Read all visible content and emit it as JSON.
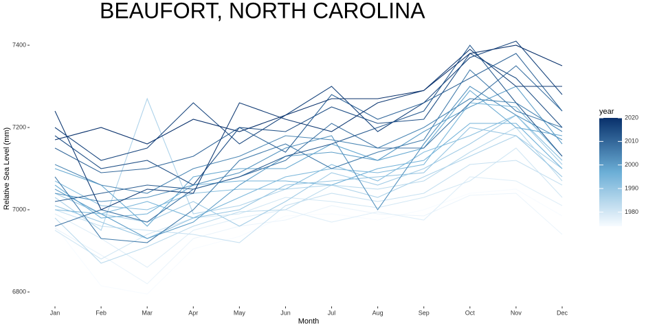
{
  "chart_data": {
    "type": "line",
    "title": "BEAUFORT, NORTH CAROLINA",
    "x_label": "Month",
    "y_label": "Relative Sea Level (mm)",
    "categories": [
      "Jan",
      "Feb",
      "Mar",
      "Apr",
      "May",
      "Jun",
      "Jul",
      "Aug",
      "Sep",
      "Oct",
      "Nov",
      "Dec"
    ],
    "ylim": [
      6780,
      7420
    ],
    "yticks": [
      6800,
      7000,
      7200,
      7400
    ],
    "colorbar": {
      "title": "year",
      "lim": [
        1974,
        2020
      ],
      "ticks": [
        1980,
        1990,
        2000,
        2010,
        2020
      ],
      "colors": [
        "#f7fbff",
        "#6baed6",
        "#08306b"
      ]
    },
    "series": [
      {
        "year": 1974,
        "values": [
          6960,
          6815,
          6795,
          6905,
          6935,
          6985,
          6990,
          6975,
          7000,
          7040,
          7050,
          6985
        ]
      },
      {
        "year": 1976,
        "values": [
          6955,
          6890,
          6820,
          6930,
          6960,
          6975,
          7010,
          6990,
          6985,
          7035,
          7040,
          6940
        ]
      },
      {
        "year": 1978,
        "values": [
          6990,
          6930,
          6860,
          6950,
          6980,
          7000,
          6970,
          6995,
          6975,
          7080,
          7070,
          7010
        ]
      },
      {
        "year": 1980,
        "values": [
          6950,
          6880,
          6940,
          6980,
          6990,
          7030,
          7020,
          7005,
          7030,
          7070,
          7150,
          7030
        ]
      },
      {
        "year": 1982,
        "values": [
          7000,
          6960,
          6950,
          6940,
          6920,
          7010,
          7040,
          7020,
          7040,
          7110,
          7120,
          7060
        ]
      },
      {
        "year": 1984,
        "values": [
          6980,
          6870,
          6910,
          6960,
          6995,
          7000,
          7060,
          7050,
          7070,
          7140,
          7200,
          7070
        ]
      },
      {
        "year": 1986,
        "values": [
          7030,
          6950,
          7270,
          6990,
          7010,
          7050,
          7060,
          7030,
          7080,
          7130,
          7180,
          7100
        ]
      },
      {
        "year": 1988,
        "values": [
          7040,
          6990,
          6970,
          7020,
          6960,
          7020,
          7090,
          7060,
          7100,
          7160,
          7230,
          7110
        ]
      },
      {
        "year": 1990,
        "values": [
          7010,
          6970,
          6930,
          6980,
          7000,
          7060,
          7070,
          7080,
          7090,
          7200,
          7180,
          7080
        ]
      },
      {
        "year": 1992,
        "values": [
          7070,
          7010,
          7000,
          7040,
          7050,
          7050,
          7110,
          7070,
          7140,
          7180,
          7230,
          7120
        ]
      },
      {
        "year": 1994,
        "values": [
          7000,
          6990,
          7020,
          6980,
          7030,
          7080,
          7100,
          7090,
          7110,
          7260,
          7250,
          7130
        ]
      },
      {
        "year": 1996,
        "values": [
          7060,
          6980,
          6990,
          7060,
          7070,
          7070,
          7060,
          7100,
          7120,
          7210,
          7210,
          7100
        ]
      },
      {
        "year": 1998,
        "values": [
          7100,
          7060,
          6960,
          7080,
          7100,
          7100,
          7160,
          7120,
          7150,
          7290,
          7200,
          7180
        ]
      },
      {
        "year": 2000,
        "values": [
          7050,
          6990,
          6930,
          6970,
          7060,
          7130,
          7140,
          7120,
          7190,
          7250,
          7300,
          7160
        ]
      },
      {
        "year": 2002,
        "values": [
          7040,
          7020,
          7030,
          7060,
          7090,
          7150,
          7180,
          7000,
          7160,
          7300,
          7230,
          7170
        ]
      },
      {
        "year": 2004,
        "values": [
          7110,
          7060,
          7040,
          7100,
          7130,
          7180,
          7170,
          7150,
          7200,
          7270,
          7260,
          7190
        ]
      },
      {
        "year": 2006,
        "values": [
          7080,
          6930,
          6920,
          7000,
          7120,
          7160,
          7100,
          7140,
          7170,
          7340,
          7240,
          7200
        ]
      },
      {
        "year": 2008,
        "values": [
          6960,
          7000,
          6970,
          7050,
          7080,
          7120,
          7210,
          7150,
          7150,
          7260,
          7350,
          7240
        ]
      },
      {
        "year": 2010,
        "values": [
          7150,
          7090,
          7100,
          7130,
          7200,
          7140,
          7280,
          7220,
          7260,
          7320,
          7380,
          7240
        ]
      },
      {
        "year": 2012,
        "values": [
          7020,
          7040,
          7060,
          7050,
          7080,
          7130,
          7160,
          7200,
          7240,
          7400,
          7260,
          7130
        ]
      },
      {
        "year": 2014,
        "values": [
          7180,
          7100,
          7120,
          7060,
          7200,
          7190,
          7250,
          7210,
          7220,
          7380,
          7320,
          7200
        ]
      },
      {
        "year": 2016,
        "values": [
          7200,
          7120,
          7150,
          7260,
          7160,
          7230,
          7300,
          7190,
          7260,
          7370,
          7410,
          7280
        ]
      },
      {
        "year": 2018,
        "values": [
          7240,
          7000,
          7050,
          7040,
          7260,
          7220,
          7190,
          7260,
          7290,
          7390,
          7300,
          7300
        ]
      },
      {
        "year": 2020,
        "values": [
          7170,
          7200,
          7160,
          7220,
          7190,
          7230,
          7270,
          7270,
          7290,
          7380,
          7400,
          7350
        ]
      }
    ]
  }
}
